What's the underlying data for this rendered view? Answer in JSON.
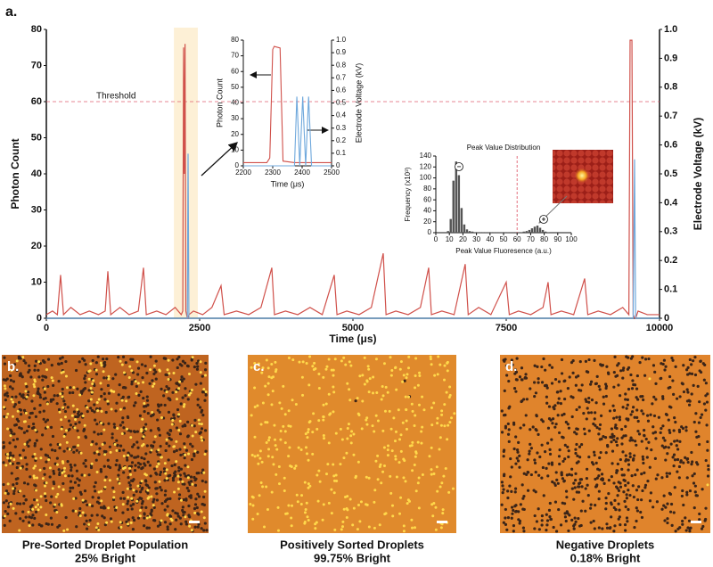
{
  "figure_label": "a.",
  "chart_data": [
    {
      "type": "line",
      "xlabel": "Time (μs)",
      "ylabel": "Photon Count",
      "y2label": "Electrode Voltage (kV)",
      "threshold": 60,
      "threshold_label": "Threshold",
      "highlight_x": [
        2080,
        2470
      ],
      "xlim": [
        0,
        10000
      ],
      "xticks": [
        0,
        2500,
        5000,
        7500,
        10000
      ],
      "ylim": [
        0,
        80
      ],
      "yticks": [
        0,
        10,
        20,
        30,
        40,
        50,
        60,
        70,
        80
      ],
      "y2lim": [
        0,
        1
      ],
      "y2ticks": [
        0,
        0.1,
        0.2,
        0.3,
        0.4,
        0.5,
        0.6,
        0.7,
        0.8,
        0.9,
        {
          "value": 1,
          "label": "1.0"
        }
      ],
      "x": [
        0,
        100,
        180,
        232,
        280,
        400,
        550,
        700,
        850,
        960,
        1003,
        1050,
        1200,
        1350,
        1500,
        1584,
        1630,
        1800,
        1950,
        2100,
        2200,
        2225,
        2238,
        2250,
        2262,
        2275,
        2300,
        2311,
        2325,
        2400,
        2550,
        2700,
        2849,
        2900,
        3100,
        3300,
        3500,
        3677,
        3720,
        3900,
        4100,
        4300,
        4500,
        4695,
        4740,
        4900,
        5100,
        5300,
        5494,
        5540,
        5700,
        5900,
        6100,
        6235,
        6280,
        6450,
        6650,
        6831,
        6880,
        7050,
        7250,
        7500,
        7550,
        7700,
        7900,
        8100,
        8183,
        8230,
        8400,
        8600,
        8779,
        8830,
        9000,
        9200,
        9400,
        9500,
        9520,
        9535,
        9550,
        9570,
        9593,
        9610,
        9650,
        9800,
        10000
      ],
      "series": [
        {
          "name": "Photon Count",
          "color": "#d0504a",
          "values": [
            1,
            2,
            1,
            12,
            1,
            3,
            1,
            2,
            1,
            2,
            13,
            1,
            3,
            1,
            2,
            14,
            1,
            2,
            1,
            3,
            1,
            2,
            75,
            40,
            76,
            2,
            0,
            0,
            1,
            2,
            1,
            3,
            9,
            1,
            2,
            1,
            3,
            14,
            1,
            2,
            1,
            3,
            1,
            12,
            1,
            2,
            1,
            3,
            18,
            1,
            2,
            1,
            3,
            14,
            1,
            2,
            1,
            15,
            1,
            3,
            1,
            10,
            1,
            2,
            1,
            3,
            10,
            1,
            2,
            1,
            11,
            1,
            2,
            1,
            3,
            1,
            77,
            77,
            77,
            1,
            0,
            0,
            2,
            1,
            1
          ]
        },
        {
          "name": "Electrode Voltage",
          "color": "#6fa8dc",
          "axis": "y2",
          "values": [
            0,
            0,
            0,
            0,
            0,
            0,
            0,
            0,
            0,
            0,
            0,
            0,
            0,
            0,
            0,
            0,
            0,
            0,
            0,
            0,
            0,
            0,
            0,
            0,
            0,
            0,
            0,
            0.57,
            0,
            0,
            0,
            0,
            0,
            0,
            0,
            0,
            0,
            0,
            0,
            0,
            0,
            0,
            0,
            0,
            0,
            0,
            0,
            0,
            0,
            0,
            0,
            0,
            0,
            0,
            0,
            0,
            0,
            0,
            0,
            0,
            0,
            0,
            0,
            0,
            0,
            0,
            0,
            0,
            0,
            0,
            0,
            0,
            0,
            0,
            0,
            0,
            0,
            0,
            0,
            0,
            0.55,
            0,
            0,
            0,
            0
          ]
        }
      ]
    },
    {
      "type": "line",
      "xlabel": "Time (μs)",
      "ylabel": "Photon Count",
      "y2label": "Electrode Voltage (kV)",
      "xlim": [
        2200,
        2500
      ],
      "xticks": [
        2200,
        2300,
        2400,
        2500
      ],
      "ylim": [
        0,
        80
      ],
      "yticks": [
        0,
        10,
        20,
        30,
        40,
        50,
        60,
        70,
        80
      ],
      "y2lim": [
        0,
        1
      ],
      "y2ticks": [
        0,
        0.1,
        0.2,
        0.3,
        0.4,
        0.5,
        0.6,
        0.7,
        0.8,
        0.9,
        {
          "value": 1,
          "label": "1.0"
        }
      ],
      "x": [
        2200,
        2280,
        2290,
        2300,
        2305,
        2325,
        2335,
        2374,
        2382,
        2392,
        2402,
        2412,
        2422,
        2432,
        2500
      ],
      "series": [
        {
          "name": "Photon Count",
          "color": "#d0504a",
          "values": [
            2,
            2,
            5,
            74,
            76,
            75,
            3,
            2,
            2,
            2,
            2,
            2,
            2,
            2,
            2
          ]
        },
        {
          "name": "Electrode Voltage",
          "color": "#6fa8dc",
          "axis": "y2",
          "values": [
            0,
            0,
            0,
            0,
            0,
            0,
            0,
            0,
            0.55,
            0,
            0.55,
            0,
            0.55,
            0,
            0
          ]
        }
      ]
    },
    {
      "type": "histogram",
      "title": "Peak Value Distribution",
      "xlabel": "Peak Value Fluoresence (a.u.)",
      "ylabel": "Frequency (x10³)",
      "threshold": 60,
      "peak_labels": [
        "−",
        "+"
      ],
      "color": "#555555",
      "xlim": [
        0,
        100
      ],
      "xticks": [
        0,
        10,
        20,
        30,
        40,
        50,
        60,
        70,
        80,
        90,
        100
      ],
      "ylim": [
        0,
        140
      ],
      "yticks": [
        0,
        20,
        40,
        60,
        80,
        100,
        120,
        140
      ],
      "bins": [
        0,
        2,
        4,
        6,
        8,
        10,
        12,
        14,
        16,
        18,
        20,
        22,
        24,
        26,
        28,
        30,
        32,
        34,
        36,
        38,
        40,
        42,
        44,
        46,
        48,
        50,
        52,
        54,
        56,
        58,
        60,
        62,
        64,
        66,
        68,
        70,
        72,
        74,
        76,
        78,
        80,
        82,
        84,
        86,
        88,
        90,
        92,
        94,
        96,
        98,
        100
      ],
      "counts": [
        0,
        0,
        0,
        0,
        3,
        25,
        95,
        130,
        105,
        45,
        15,
        6,
        3,
        2,
        1,
        1,
        1,
        1,
        1,
        1,
        1,
        1,
        1,
        1,
        1,
        1,
        1,
        1,
        1,
        1,
        1,
        1,
        2,
        3,
        5,
        8,
        11,
        13,
        9,
        5,
        2,
        1,
        0,
        0,
        0,
        0,
        0,
        0,
        0,
        0
      ]
    }
  ],
  "panels": [
    {
      "label": "b.",
      "caption": [
        "Pre-Sorted Droplet Population",
        "25% Bright"
      ]
    },
    {
      "label": "c.",
      "caption": [
        "Positively Sorted Droplets",
        "99.75% Bright"
      ]
    },
    {
      "label": "d.",
      "caption": [
        "Negative Droplets",
        "0.18% Bright"
      ]
    }
  ]
}
